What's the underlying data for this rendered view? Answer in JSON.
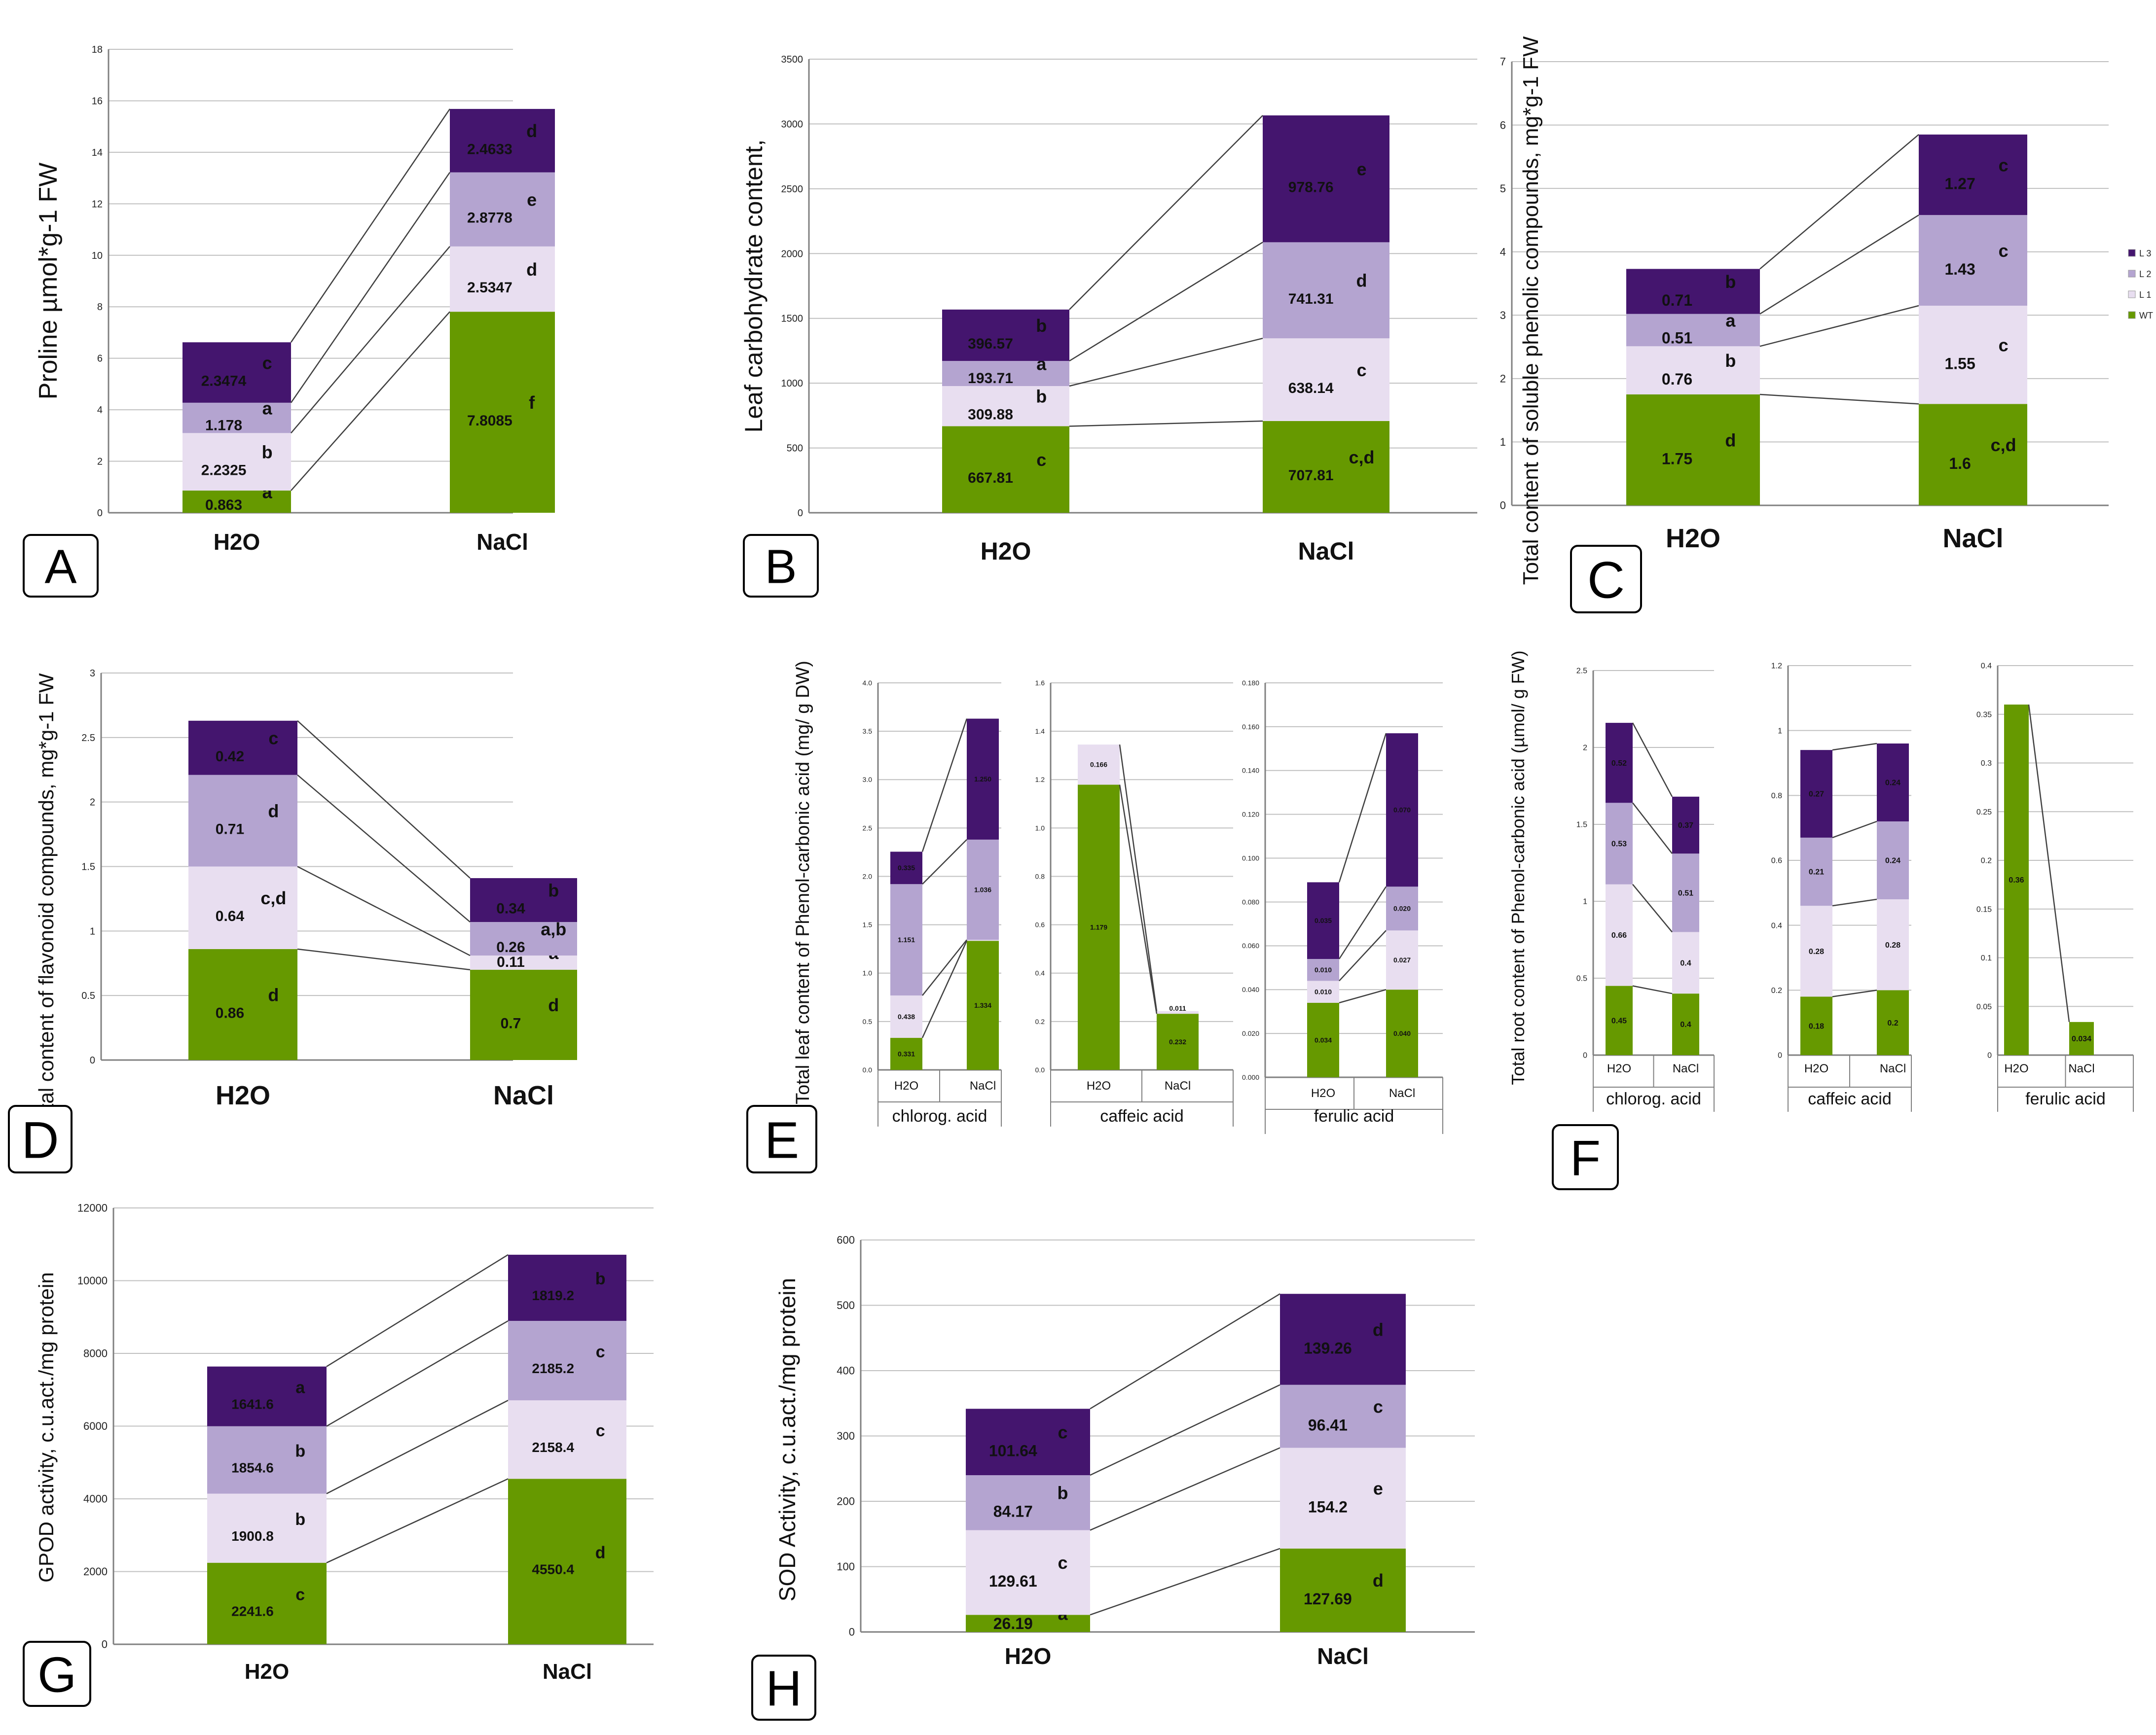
{
  "colors": {
    "WT": "#669900",
    "L1": "#e8def0",
    "L2": "#b4a4d0",
    "L3": "#44156e",
    "grid": "#c0c0c0",
    "axis": "#808080",
    "connector": "#404040"
  },
  "chart_data": [
    {
      "panel": "A",
      "type": "bar",
      "stacked": true,
      "ylabel": "Proline µmol*g-1 FW",
      "ylim": [
        0,
        18
      ],
      "yticks": [
        "0",
        "2",
        "4",
        "6",
        "8",
        "10",
        "12",
        "14",
        "16",
        "18"
      ],
      "categories": [
        "H2O",
        "NaCl"
      ],
      "series": [
        {
          "name": "WT",
          "values": [
            0.863,
            7.8085
          ],
          "labels": [
            "0.863",
            "7.8085"
          ],
          "letters": [
            "a",
            "f"
          ]
        },
        {
          "name": "L 1",
          "values": [
            2.2325,
            2.5347
          ],
          "labels": [
            "2.2325",
            "2.5347"
          ],
          "letters": [
            "b",
            "d"
          ]
        },
        {
          "name": "L 2",
          "values": [
            1.178,
            2.8778
          ],
          "labels": [
            "1.178",
            "2.8778"
          ],
          "letters": [
            "a",
            "e"
          ]
        },
        {
          "name": "L 3",
          "values": [
            2.3474,
            2.4633
          ],
          "labels": [
            "2.3474",
            "2.4633"
          ],
          "letters": [
            "c",
            "d"
          ]
        }
      ]
    },
    {
      "panel": "B",
      "type": "bar",
      "stacked": true,
      "ylabel": "Leaf carbohydrate content,",
      "ylim": [
        0,
        3500
      ],
      "yticks": [
        "0",
        "500",
        "1000",
        "1500",
        "2000",
        "2500",
        "3000",
        "3500"
      ],
      "categories": [
        "H2O",
        "NaCl"
      ],
      "series": [
        {
          "name": "WT",
          "values": [
            667.81,
            707.81
          ],
          "labels": [
            "667.81",
            "707.81"
          ],
          "letters": [
            "c",
            "c,d"
          ]
        },
        {
          "name": "L 1",
          "values": [
            309.88,
            638.14
          ],
          "labels": [
            "309.88",
            "638.14"
          ],
          "letters": [
            "b",
            "c"
          ]
        },
        {
          "name": "L 2",
          "values": [
            193.71,
            741.31
          ],
          "labels": [
            "193.71",
            "741.31"
          ],
          "letters": [
            "a",
            "d"
          ]
        },
        {
          "name": "L 3",
          "values": [
            396.57,
            978.76
          ],
          "labels": [
            "396.57",
            "978.76"
          ],
          "letters": [
            "b",
            "e"
          ]
        }
      ]
    },
    {
      "panel": "C",
      "type": "bar",
      "stacked": true,
      "ylabel": "Total content of soluble phenolic compounds, mg*g-1 FW",
      "ylim": [
        0,
        7
      ],
      "yticks": [
        "0",
        "1",
        "2",
        "3",
        "4",
        "5",
        "6",
        "7"
      ],
      "categories": [
        "H2O",
        "NaCl"
      ],
      "legend": [
        "L 3",
        "L 2",
        "L 1",
        "WT"
      ],
      "series": [
        {
          "name": "WT",
          "values": [
            1.75,
            1.6
          ],
          "labels": [
            "1.75",
            "1.6"
          ],
          "letters": [
            "d",
            "c,d"
          ]
        },
        {
          "name": "L 1",
          "values": [
            0.76,
            1.55
          ],
          "labels": [
            "0.76",
            "1.55"
          ],
          "letters": [
            "b",
            "c"
          ]
        },
        {
          "name": "L 2",
          "values": [
            0.51,
            1.43
          ],
          "labels": [
            "0.51",
            "1.43"
          ],
          "letters": [
            "a",
            "c"
          ]
        },
        {
          "name": "L 3",
          "values": [
            0.71,
            1.27
          ],
          "labels": [
            "0.71",
            "1.27"
          ],
          "letters": [
            "b",
            "c"
          ]
        }
      ]
    },
    {
      "panel": "D",
      "type": "bar",
      "stacked": true,
      "ylabel": "Total content of flavonoid compounds, mg*g-1 FW",
      "ylim": [
        0,
        3
      ],
      "yticks": [
        "0",
        "0.5",
        "1",
        "1.5",
        "2",
        "2.5",
        "3"
      ],
      "categories": [
        "H2O",
        "NaCl"
      ],
      "series": [
        {
          "name": "WT",
          "values": [
            0.86,
            0.7
          ],
          "labels": [
            "0.86",
            "0.7"
          ],
          "letters": [
            "d",
            "d"
          ]
        },
        {
          "name": "L 1",
          "values": [
            0.64,
            0.11
          ],
          "labels": [
            "0.64",
            "0.11"
          ],
          "letters": [
            "c,d",
            "a"
          ]
        },
        {
          "name": "L 2",
          "values": [
            0.71,
            0.26
          ],
          "labels": [
            "0.71",
            "0.26"
          ],
          "letters": [
            "d",
            "a,b"
          ]
        },
        {
          "name": "L 3",
          "values": [
            0.42,
            0.34
          ],
          "labels": [
            "0.42",
            "0.34"
          ],
          "letters": [
            "c",
            "b"
          ]
        }
      ]
    },
    {
      "panel": "E",
      "type": "bar",
      "stacked": true,
      "ylabel": "Total leaf content of Phenol-carbonic acid (mg/ g DW)",
      "subcharts": [
        {
          "group": "chlorog. acid",
          "ylim": [
            0,
            4
          ],
          "yticks": [
            "0.0",
            "0.5",
            "1.0",
            "1.5",
            "2.0",
            "2.5",
            "3.0",
            "3.5",
            "4.0"
          ],
          "categories": [
            "H2O",
            "NaCl"
          ],
          "series": [
            {
              "name": "WT",
              "values": [
                0.331,
                1.334
              ],
              "labels": [
                "0.331",
                "1.334"
              ]
            },
            {
              "name": "L 1",
              "values": [
                0.438,
                0.01
              ],
              "labels": [
                "0.438",
                "0.010"
              ]
            },
            {
              "name": "L 2",
              "values": [
                1.151,
                1.036
              ],
              "labels": [
                "1.151",
                "1.036"
              ]
            },
            {
              "name": "L 3",
              "values": [
                0.335,
                1.25
              ],
              "labels": [
                "0.335",
                "1.250"
              ]
            }
          ]
        },
        {
          "group": "caffeic acid",
          "ylim": [
            0,
            1.6
          ],
          "yticks": [
            "0.0",
            "0.2",
            "0.4",
            "0.6",
            "0.8",
            "1.0",
            "1.2",
            "1.4",
            "1.6"
          ],
          "categories": [
            "H2O",
            "NaCl"
          ],
          "series": [
            {
              "name": "WT",
              "values": [
                1.179,
                0.232
              ],
              "labels": [
                "1.179",
                "0.232"
              ]
            },
            {
              "name": "L 1",
              "values": [
                0.166,
                0.011
              ],
              "labels": [
                "0.166",
                "0.011"
              ]
            }
          ]
        },
        {
          "group": "ferulic acid",
          "ylim": [
            0,
            0.18
          ],
          "yticks": [
            "0.000",
            "0.020",
            "0.040",
            "0.060",
            "0.080",
            "0.100",
            "0.120",
            "0.140",
            "0.160",
            "0.180"
          ],
          "categories": [
            "H2O",
            "NaCl"
          ],
          "series": [
            {
              "name": "WT",
              "values": [
                0.034,
                0.04
              ],
              "labels": [
                "0.034",
                "0.040"
              ]
            },
            {
              "name": "L 1",
              "values": [
                0.01,
                0.027
              ],
              "labels": [
                "0.010",
                "0.027"
              ]
            },
            {
              "name": "L 2",
              "values": [
                0.01,
                0.02
              ],
              "labels": [
                "0.010",
                "0.020"
              ]
            },
            {
              "name": "L 3",
              "values": [
                0.035,
                0.07
              ],
              "labels": [
                "0.035",
                "0.070"
              ]
            }
          ]
        }
      ]
    },
    {
      "panel": "F",
      "type": "bar",
      "stacked": true,
      "ylabel": "Total root content of Phenol-carbonic acid (µmol/ g FW)",
      "subcharts": [
        {
          "group": "chlorog. acid",
          "ylim": [
            0,
            2.5
          ],
          "yticks": [
            "0",
            "0.5",
            "1",
            "1.5",
            "2",
            "2.5"
          ],
          "categories": [
            "H2O",
            "NaCl"
          ],
          "series": [
            {
              "name": "WT",
              "values": [
                0.45,
                0.4
              ],
              "labels": [
                "0.45",
                "0.4"
              ]
            },
            {
              "name": "L 1",
              "values": [
                0.66,
                0.4
              ],
              "labels": [
                "0.66",
                "0.4"
              ]
            },
            {
              "name": "L 2",
              "values": [
                0.53,
                0.51
              ],
              "labels": [
                "0.53",
                "0.51"
              ]
            },
            {
              "name": "L 3",
              "values": [
                0.52,
                0.37
              ],
              "labels": [
                "0.52",
                "0.37"
              ]
            }
          ]
        },
        {
          "group": "caffeic acid",
          "ylim": [
            0,
            1.2
          ],
          "yticks": [
            "0",
            "0.2",
            "0.4",
            "0.6",
            "0.8",
            "1",
            "1.2"
          ],
          "categories": [
            "H2O",
            "NaCl"
          ],
          "series": [
            {
              "name": "WT",
              "values": [
                0.18,
                0.2
              ],
              "labels": [
                "0.18",
                "0.2"
              ]
            },
            {
              "name": "L 1",
              "values": [
                0.28,
                0.28
              ],
              "labels": [
                "0.28",
                "0.28"
              ]
            },
            {
              "name": "L 2",
              "values": [
                0.21,
                0.24
              ],
              "labels": [
                "0.21",
                "0.24"
              ]
            },
            {
              "name": "L 3",
              "values": [
                0.27,
                0.24
              ],
              "labels": [
                "0.27",
                "0.24"
              ]
            }
          ]
        },
        {
          "group": "ferulic acid",
          "ylim": [
            0,
            0.4
          ],
          "yticks": [
            "0",
            "0.05",
            "0.1",
            "0.15",
            "0.2",
            "0.25",
            "0.3",
            "0.35",
            "0.4"
          ],
          "categories": [
            "H2O",
            "NaCl"
          ],
          "series": [
            {
              "name": "WT",
              "values": [
                0.36,
                0.034
              ],
              "labels": [
                "0.36",
                "0.034"
              ]
            }
          ]
        }
      ]
    },
    {
      "panel": "G",
      "type": "bar",
      "stacked": true,
      "ylabel": "GPOD activity, c.u.act./mg protein",
      "ylim": [
        0,
        12000
      ],
      "yticks": [
        "0",
        "2000",
        "4000",
        "6000",
        "8000",
        "10000",
        "12000"
      ],
      "categories": [
        "H2O",
        "NaCl"
      ],
      "series": [
        {
          "name": "WT",
          "values": [
            2241.6,
            4550.4
          ],
          "labels": [
            "2241.6",
            "4550.4"
          ],
          "letters": [
            "c",
            "d"
          ]
        },
        {
          "name": "L 1",
          "values": [
            1900.8,
            2158.4
          ],
          "labels": [
            "1900.8",
            "2158.4"
          ],
          "letters": [
            "b",
            "c"
          ]
        },
        {
          "name": "L 2",
          "values": [
            1854.6,
            2185.2
          ],
          "labels": [
            "1854.6",
            "2185.2"
          ],
          "letters": [
            "b",
            "c"
          ]
        },
        {
          "name": "L 3",
          "values": [
            1641.6,
            1819.2
          ],
          "labels": [
            "1641.6",
            "1819.2"
          ],
          "letters": [
            "a",
            "b"
          ]
        }
      ]
    },
    {
      "panel": "H",
      "type": "bar",
      "stacked": true,
      "ylabel": "SOD Activity, c.u.act./mg protein",
      "ylim": [
        0,
        600
      ],
      "yticks": [
        "0",
        "100",
        "200",
        "300",
        "400",
        "500",
        "600"
      ],
      "categories": [
        "H2O",
        "NaCl"
      ],
      "series": [
        {
          "name": "WT",
          "values": [
            26.19,
            127.69
          ],
          "labels": [
            "26.19",
            "127.69"
          ],
          "letters": [
            "a",
            "d"
          ]
        },
        {
          "name": "L 1",
          "values": [
            129.61,
            154.2
          ],
          "labels": [
            "129.61",
            "154.2"
          ],
          "letters": [
            "c",
            "e"
          ]
        },
        {
          "name": "L 2",
          "values": [
            84.17,
            96.41
          ],
          "labels": [
            "84.17",
            "96.41"
          ],
          "letters": [
            "b",
            "c"
          ]
        },
        {
          "name": "L 3",
          "values": [
            101.64,
            139.26
          ],
          "labels": [
            "101.64",
            "139.26"
          ],
          "letters": [
            "c",
            "d"
          ]
        }
      ]
    }
  ]
}
